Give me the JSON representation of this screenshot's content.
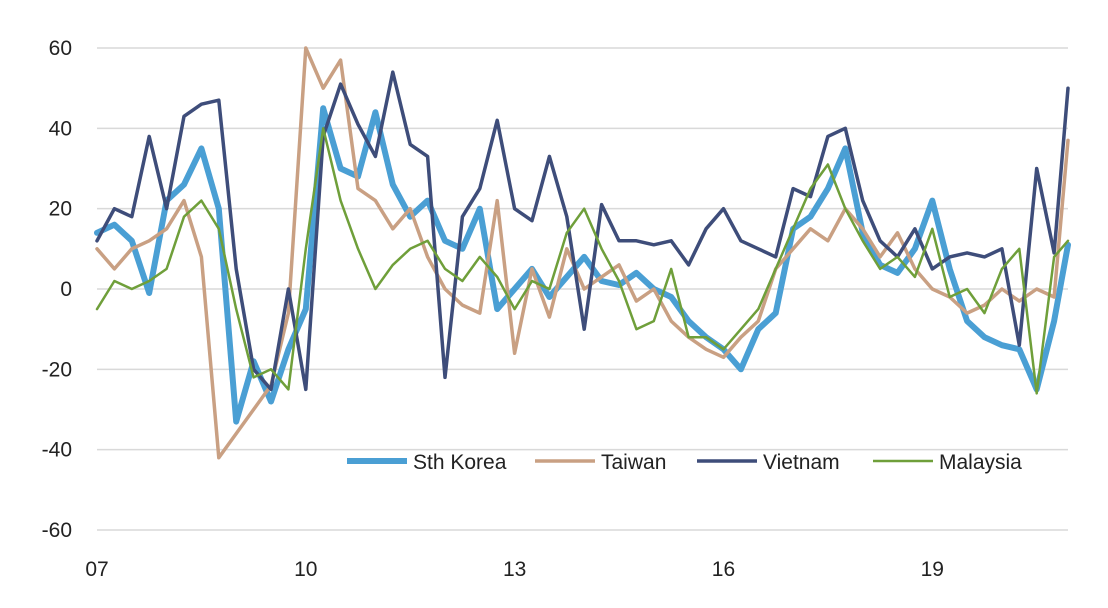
{
  "chart_data": {
    "type": "line",
    "title": "",
    "xlabel": "",
    "ylabel": "",
    "ylim": [
      -60,
      60
    ],
    "yticks": [
      -60,
      -40,
      -20,
      0,
      20,
      40,
      60
    ],
    "xlim": [
      2007,
      2020.95
    ],
    "xticks": [
      {
        "value": 2007,
        "label": "07"
      },
      {
        "value": 2010,
        "label": "10"
      },
      {
        "value": 2013,
        "label": "13"
      },
      {
        "value": 2016,
        "label": "16"
      },
      {
        "value": 2019,
        "label": "19"
      }
    ],
    "grid": "horizontal",
    "legend_position": "lower-right",
    "series": [
      {
        "name": "Sth Korea",
        "color": "#4a9fd4",
        "x": [
          2007.0,
          2007.25,
          2007.5,
          2007.75,
          2008.0,
          2008.25,
          2008.5,
          2008.75,
          2009.0,
          2009.25,
          2009.5,
          2009.75,
          2010.0,
          2010.25,
          2010.5,
          2010.75,
          2011.0,
          2011.25,
          2011.5,
          2011.75,
          2012.0,
          2012.25,
          2012.5,
          2012.75,
          2013.0,
          2013.25,
          2013.5,
          2013.75,
          2014.0,
          2014.25,
          2014.5,
          2014.75,
          2015.0,
          2015.25,
          2015.5,
          2015.75,
          2016.0,
          2016.25,
          2016.5,
          2016.75,
          2017.0,
          2017.25,
          2017.5,
          2017.75,
          2018.0,
          2018.25,
          2018.5,
          2018.75,
          2019.0,
          2019.25,
          2019.5,
          2019.75,
          2020.0,
          2020.25,
          2020.5,
          2020.75,
          2020.95
        ],
        "y": [
          14,
          16,
          12,
          -1,
          22,
          26,
          35,
          20,
          -33,
          -18,
          -28,
          -15,
          -5,
          45,
          30,
          28,
          44,
          26,
          18,
          22,
          12,
          10,
          20,
          -5,
          0,
          5,
          -2,
          3,
          8,
          2,
          1,
          4,
          0,
          -2,
          -8,
          -12,
          -15,
          -20,
          -10,
          -6,
          15,
          18,
          25,
          35,
          14,
          6,
          4,
          10,
          22,
          5,
          -8,
          -12,
          -14,
          -15,
          -25,
          -8,
          11
        ]
      },
      {
        "name": "Taiwan",
        "color": "#c9a083",
        "x": [
          2007.0,
          2007.25,
          2007.5,
          2007.75,
          2008.0,
          2008.25,
          2008.5,
          2008.75,
          2009.0,
          2009.25,
          2009.5,
          2009.75,
          2010.0,
          2010.25,
          2010.5,
          2010.75,
          2011.0,
          2011.25,
          2011.5,
          2011.75,
          2012.0,
          2012.25,
          2012.5,
          2012.75,
          2013.0,
          2013.25,
          2013.5,
          2013.75,
          2014.0,
          2014.25,
          2014.5,
          2014.75,
          2015.0,
          2015.25,
          2015.5,
          2015.75,
          2016.0,
          2016.25,
          2016.5,
          2016.75,
          2017.0,
          2017.25,
          2017.5,
          2017.75,
          2018.0,
          2018.25,
          2018.5,
          2018.75,
          2019.0,
          2019.25,
          2019.5,
          2019.75,
          2020.0,
          2020.25,
          2020.5,
          2020.75,
          2020.95
        ],
        "y": [
          10,
          5,
          10,
          12,
          15,
          22,
          8,
          -42,
          -36,
          -30,
          -24,
          -6,
          60,
          50,
          57,
          25,
          22,
          15,
          20,
          8,
          0,
          -4,
          -6,
          22,
          -16,
          5,
          -7,
          10,
          0,
          3,
          6,
          -3,
          0,
          -8,
          -12,
          -15,
          -17,
          -12,
          -8,
          5,
          10,
          15,
          12,
          20,
          15,
          8,
          14,
          5,
          0,
          -2,
          -6,
          -4,
          0,
          -3,
          0,
          -2,
          37
        ]
      },
      {
        "name": "Vietnam",
        "color": "#3e4d7a",
        "x": [
          2007.0,
          2007.25,
          2007.5,
          2007.75,
          2008.0,
          2008.25,
          2008.5,
          2008.75,
          2009.0,
          2009.25,
          2009.5,
          2009.75,
          2010.0,
          2010.25,
          2010.5,
          2010.75,
          2011.0,
          2011.25,
          2011.5,
          2011.75,
          2012.0,
          2012.25,
          2012.5,
          2012.75,
          2013.0,
          2013.25,
          2013.5,
          2013.75,
          2014.0,
          2014.25,
          2014.5,
          2014.75,
          2015.0,
          2015.25,
          2015.5,
          2015.75,
          2016.0,
          2016.25,
          2016.5,
          2016.75,
          2017.0,
          2017.25,
          2017.5,
          2017.75,
          2018.0,
          2018.25,
          2018.5,
          2018.75,
          2019.0,
          2019.25,
          2019.5,
          2019.75,
          2020.0,
          2020.25,
          2020.5,
          2020.75,
          2020.95
        ],
        "y": [
          12,
          20,
          18,
          38,
          20,
          43,
          46,
          47,
          5,
          -20,
          -25,
          0,
          -25,
          38,
          51,
          41,
          33,
          54,
          36,
          33,
          -22,
          18,
          25,
          42,
          20,
          17,
          33,
          18,
          -10,
          21,
          12,
          12,
          11,
          12,
          6,
          15,
          20,
          12,
          10,
          8,
          25,
          23,
          38,
          40,
          22,
          12,
          8,
          15,
          5,
          8,
          9,
          8,
          10,
          -14,
          30,
          9,
          50
        ]
      },
      {
        "name": "Malaysia",
        "color": "#6f9f3a",
        "x": [
          2007.0,
          2007.25,
          2007.5,
          2007.75,
          2008.0,
          2008.25,
          2008.5,
          2008.75,
          2009.0,
          2009.25,
          2009.5,
          2009.75,
          2010.0,
          2010.25,
          2010.5,
          2010.75,
          2011.0,
          2011.25,
          2011.5,
          2011.75,
          2012.0,
          2012.25,
          2012.5,
          2012.75,
          2013.0,
          2013.25,
          2013.5,
          2013.75,
          2014.0,
          2014.25,
          2014.5,
          2014.75,
          2015.0,
          2015.25,
          2015.5,
          2015.75,
          2016.0,
          2016.25,
          2016.5,
          2016.75,
          2017.0,
          2017.25,
          2017.5,
          2017.75,
          2018.0,
          2018.25,
          2018.5,
          2018.75,
          2019.0,
          2019.25,
          2019.5,
          2019.75,
          2020.0,
          2020.25,
          2020.5,
          2020.75,
          2020.95
        ],
        "y": [
          -5,
          2,
          0,
          2,
          5,
          18,
          22,
          15,
          -5,
          -22,
          -20,
          -25,
          10,
          40,
          22,
          10,
          0,
          6,
          10,
          12,
          5,
          2,
          8,
          3,
          -5,
          2,
          0,
          14,
          20,
          10,
          2,
          -10,
          -8,
          5,
          -12,
          -12,
          -15,
          -10,
          -5,
          5,
          15,
          25,
          31,
          20,
          12,
          5,
          8,
          3,
          15,
          -2,
          0,
          -6,
          5,
          10,
          -26,
          8,
          12
        ]
      }
    ]
  }
}
